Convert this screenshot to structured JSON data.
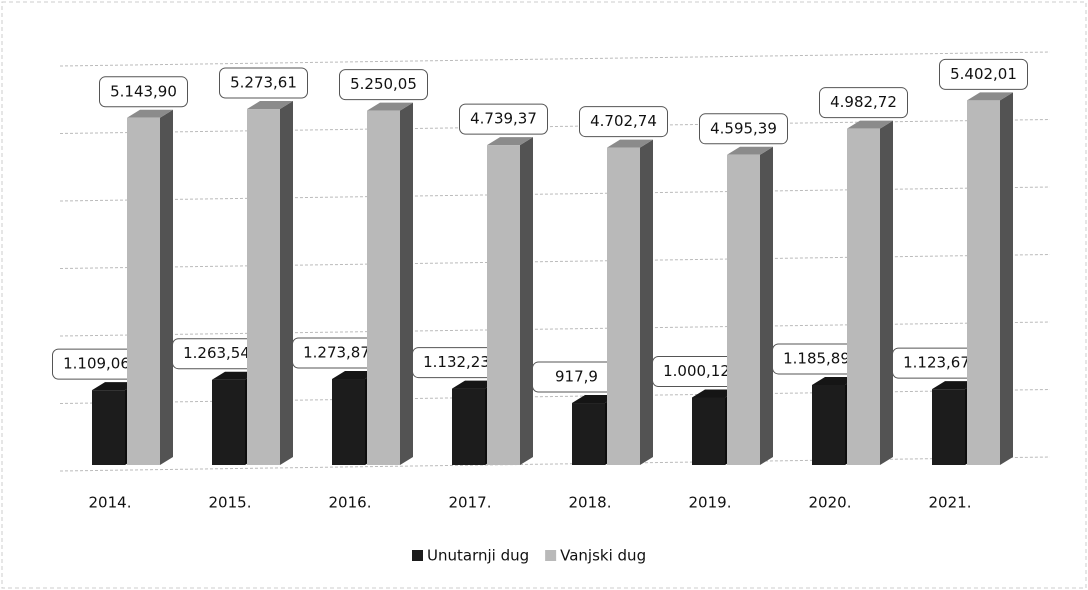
{
  "chart_data": {
    "type": "bar3d",
    "categories": [
      "2014.",
      "2015.",
      "2016.",
      "2017.",
      "2018.",
      "2019.",
      "2020.",
      "2021."
    ],
    "series": [
      {
        "name": "Unutarnji dug",
        "color": "#1c1c1c",
        "values": [
          1109.06,
          1263.54,
          1273.87,
          1132.23,
          917.9,
          1000.12,
          1185.89,
          1123.67
        ],
        "value_labels": [
          "1.109,06",
          "1.263,54",
          "1.273,87",
          "1.132,23",
          "917,9",
          "1.000,12",
          "1.185,89",
          "1.123,67"
        ]
      },
      {
        "name": "Vanjski dug",
        "color": "#b9b9b9",
        "values": [
          5143.9,
          5273.61,
          5250.05,
          4739.37,
          4702.74,
          4595.39,
          4982.72,
          5402.01
        ],
        "value_labels": [
          "5.143,90",
          "5.273,61",
          "5.250,05",
          "4.739,37",
          "4.702,74",
          "4.595,39",
          "4.982,72",
          "5.402,01"
        ]
      }
    ],
    "ylim": [
      0,
      6000
    ],
    "yticks": [
      0,
      1000,
      2000,
      3000,
      4000,
      5000,
      6000
    ],
    "grid": true,
    "legend": "bottom"
  }
}
